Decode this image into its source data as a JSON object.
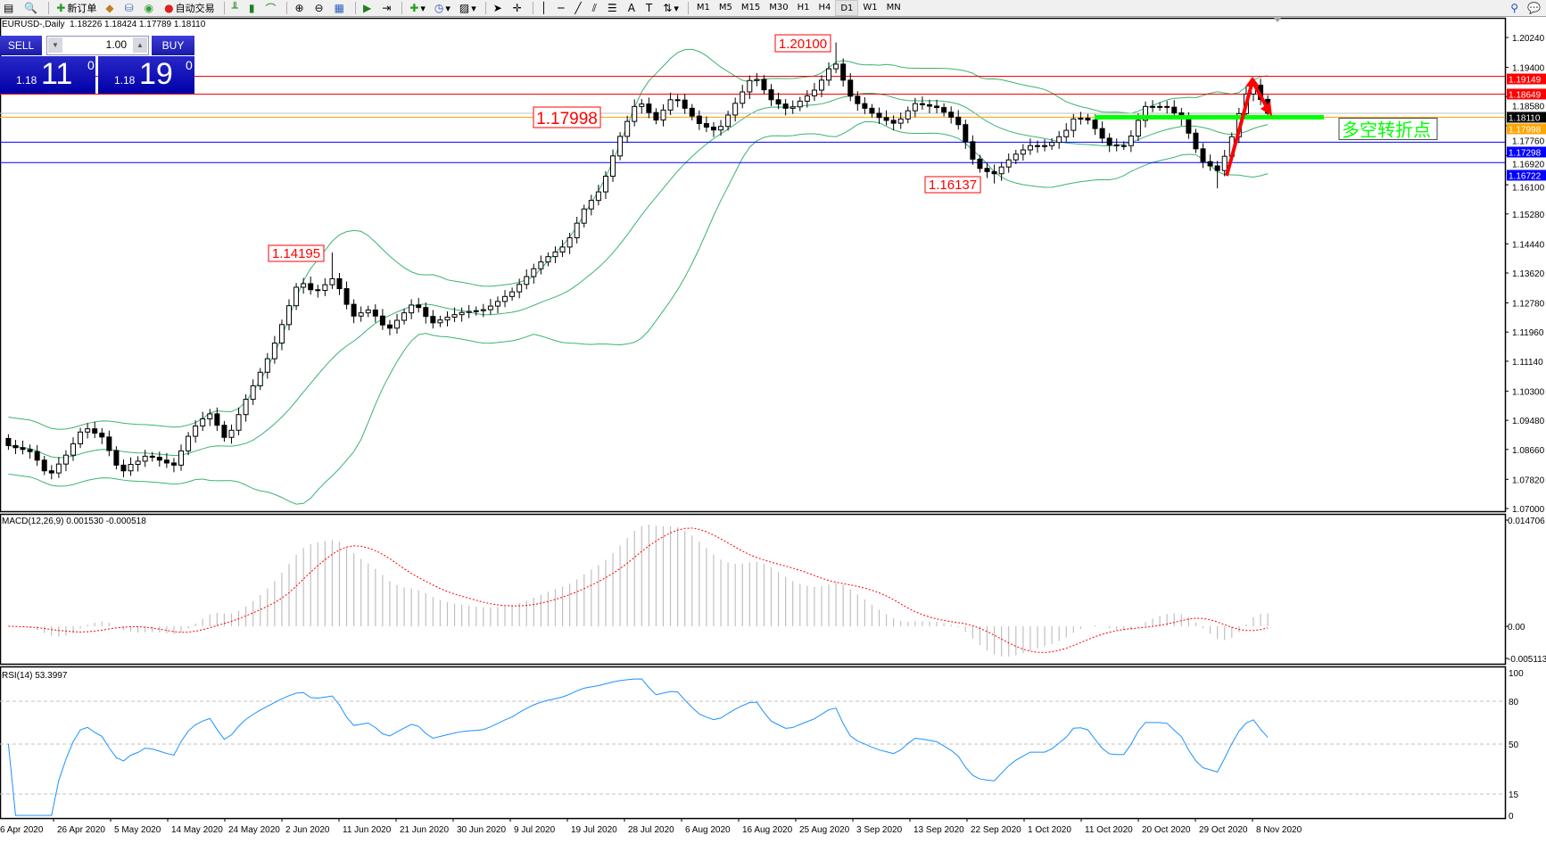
{
  "toolbar": {
    "icons": [
      "new-chart-icon",
      "zoom-icon"
    ],
    "new_order_label": "新订单",
    "auto_trading_label": "自动交易",
    "timeframes": [
      "M1",
      "M5",
      "M15",
      "M30",
      "H1",
      "H4",
      "D1",
      "W1",
      "MN"
    ],
    "active_timeframe": "D1"
  },
  "chart": {
    "title": "EURUSD-,Daily  1.18226 1.18424 1.17789 1.18110",
    "symbol": "EURUSD-",
    "period": "Daily",
    "ohlc": {
      "open": 1.18226,
      "high": 1.18424,
      "low": 1.17789,
      "close": 1.1811
    }
  },
  "trade_panel": {
    "sell_label": "SELL",
    "buy_label": "BUY",
    "volume": "1.00",
    "sell_price": {
      "prefix": "1.18",
      "big": "11",
      "sup": "0"
    },
    "buy_price": {
      "prefix": "1.18",
      "big": "19",
      "sup": "0"
    }
  },
  "price_axis": {
    "ticks": [
      "1.20240",
      "1.19400",
      "1.18580",
      "1.17760",
      "1.16920",
      "1.16100",
      "1.15280",
      "1.14440",
      "1.13620",
      "1.12780",
      "1.11960",
      "1.11140",
      "1.10300",
      "1.09480",
      "1.08660",
      "1.07820",
      "1.07000"
    ],
    "range": [
      1.07,
      1.2024
    ]
  },
  "horizontal_lines": [
    {
      "price": "1.19149",
      "color": "#ff0000"
    },
    {
      "price": "1.18649",
      "color": "#ff0000"
    },
    {
      "price": "1.18110",
      "color": "#000000",
      "line": "#c0c0c0"
    },
    {
      "price": "1.17998",
      "color": "#ffa500"
    },
    {
      "price": "1.17298",
      "color": "#0000ff"
    },
    {
      "price": "1.16722",
      "color": "#0000ff"
    }
  ],
  "annotations": [
    {
      "text": "1.20100",
      "color": "#ff0000"
    },
    {
      "text": "1.17998",
      "color": "#ff0000"
    },
    {
      "text": "1.14195",
      "color": "#ff0000"
    },
    {
      "text": "1.16137",
      "color": "#ff0000"
    }
  ],
  "pivot_label": {
    "text": "多空转折点",
    "color": "#00ff00",
    "price": 1.17998
  },
  "candles": {
    "closes": [
      1.0877,
      1.0871,
      1.0866,
      1.086,
      1.0836,
      1.0806,
      1.08,
      1.0825,
      1.085,
      1.0882,
      1.0915,
      1.0924,
      1.0912,
      1.0901,
      1.0863,
      1.0822,
      1.0806,
      1.0824,
      1.0833,
      1.0847,
      1.0844,
      1.0836,
      1.0828,
      1.0822,
      1.0862,
      1.0903,
      1.0932,
      1.0952,
      1.0966,
      1.0934,
      1.09,
      1.092,
      1.0964,
      1.1007,
      1.1045,
      1.1083,
      1.1121,
      1.1165,
      1.1217,
      1.127,
      1.1322,
      1.1332,
      1.1315,
      1.1313,
      1.1329,
      1.1346,
      1.1318,
      1.1274,
      1.1241,
      1.125,
      1.1258,
      1.1241,
      1.1216,
      1.1207,
      1.1229,
      1.125,
      1.1272,
      1.1265,
      1.124,
      1.1222,
      1.123,
      1.1238,
      1.1245,
      1.1251,
      1.1254,
      1.1256,
      1.1259,
      1.1269,
      1.1282,
      1.1296,
      1.1309,
      1.133,
      1.1352,
      1.1374,
      1.1393,
      1.1408,
      1.1421,
      1.1435,
      1.1461,
      1.1502,
      1.1542,
      1.1566,
      1.159,
      1.1634,
      1.1691,
      1.1746,
      1.1788,
      1.183,
      1.1837,
      1.1813,
      1.1792,
      1.182,
      1.1849,
      1.1848,
      1.1825,
      1.1803,
      1.1782,
      1.1772,
      1.1764,
      1.1774,
      1.1806,
      1.1839,
      1.1871,
      1.1903,
      1.1906,
      1.1877,
      1.1849,
      1.1837,
      1.1825,
      1.1829,
      1.1845,
      1.186,
      1.1876,
      1.1904,
      1.1936,
      1.1949,
      1.1904,
      1.1859,
      1.1838,
      1.1825,
      1.1811,
      1.1799,
      1.1791,
      1.1783,
      1.1795,
      1.1818,
      1.1838,
      1.1835,
      1.1831,
      1.1827,
      1.1814,
      1.18,
      1.1779,
      1.1731,
      1.1682,
      1.1656,
      1.1647,
      1.1641,
      1.166,
      1.168,
      1.1696,
      1.1708,
      1.172,
      1.172,
      1.172,
      1.1729,
      1.1745,
      1.1763,
      1.1795,
      1.1797,
      1.1792,
      1.1768,
      1.1741,
      1.1722,
      1.172,
      1.172,
      1.1747,
      1.1791,
      1.183,
      1.183,
      1.183,
      1.1828,
      1.1812,
      1.1796,
      1.1755,
      1.1711,
      1.1675,
      1.1663,
      1.165,
      1.169,
      1.1745,
      1.181,
      1.1865,
      1.189,
      1.185,
      1.1811
    ],
    "up_color": "#ffffff",
    "down_color": "#000000",
    "bollinger_color": "#3cb371"
  },
  "macd": {
    "label": "MACD(12,26,9) 0.001530 -0.000518",
    "axis": [
      "0.014706",
      "0.00",
      "-0.005113"
    ],
    "range": [
      -0.005113,
      0.014706
    ],
    "histogram_color": "#c0c0c0",
    "signal_color": "#ff0000"
  },
  "rsi": {
    "label": "RSI(14) 53.3997",
    "axis": [
      "100",
      "80",
      "50",
      "15",
      "0"
    ],
    "levels": [
      80,
      50,
      15
    ],
    "line_color": "#1e90ff"
  },
  "time_axis": [
    "6 Apr 2020",
    "26 Apr 2020",
    "5 May 2020",
    "14 May 2020",
    "24 May 2020",
    "2 Jun 2020",
    "11 Jun 2020",
    "21 Jun 2020",
    "30 Jun 2020",
    "9 Jul 2020",
    "19 Jul 2020",
    "28 Jul 2020",
    "6 Aug 2020",
    "16 Aug 2020",
    "25 Aug 2020",
    "3 Sep 2020",
    "13 Sep 2020",
    "22 Sep 2020",
    "1 Oct 2020",
    "11 Oct 2020",
    "20 Oct 2020",
    "29 Oct 2020",
    "8 Nov 2020"
  ]
}
